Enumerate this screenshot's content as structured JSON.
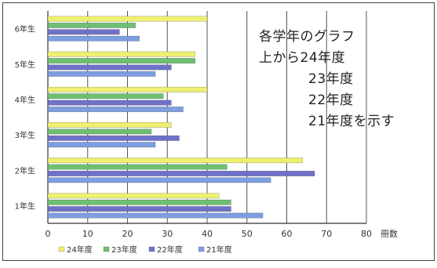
{
  "chart_data": {
    "type": "bar",
    "orientation": "horizontal",
    "categories": [
      "6年生",
      "5年生",
      "4年生",
      "3年生",
      "2年生",
      "1年生"
    ],
    "series": [
      {
        "name": "24年度",
        "color": "#eef071",
        "values": [
          40,
          37,
          40,
          31,
          64,
          43
        ]
      },
      {
        "name": "23年度",
        "color": "#6fbf73",
        "values": [
          22,
          37,
          29,
          26,
          45,
          46
        ]
      },
      {
        "name": "22年度",
        "color": "#6f72c8",
        "values": [
          18,
          31,
          31,
          33,
          67,
          46
        ]
      },
      {
        "name": "21年度",
        "color": "#7d9ee0",
        "values": [
          23,
          27,
          34,
          27,
          56,
          54
        ]
      }
    ],
    "xticks": [
      "0",
      "10",
      "20",
      "30",
      "40",
      "50",
      "60",
      "70",
      "80"
    ],
    "xlim": [
      0,
      80
    ],
    "xlabel": "冊数",
    "grid": true,
    "legend": "bottom"
  },
  "annotation": {
    "lines": [
      "各学年のグラフ",
      "上から24年度",
      "23年度",
      "22年度",
      "21年度を示す"
    ]
  }
}
